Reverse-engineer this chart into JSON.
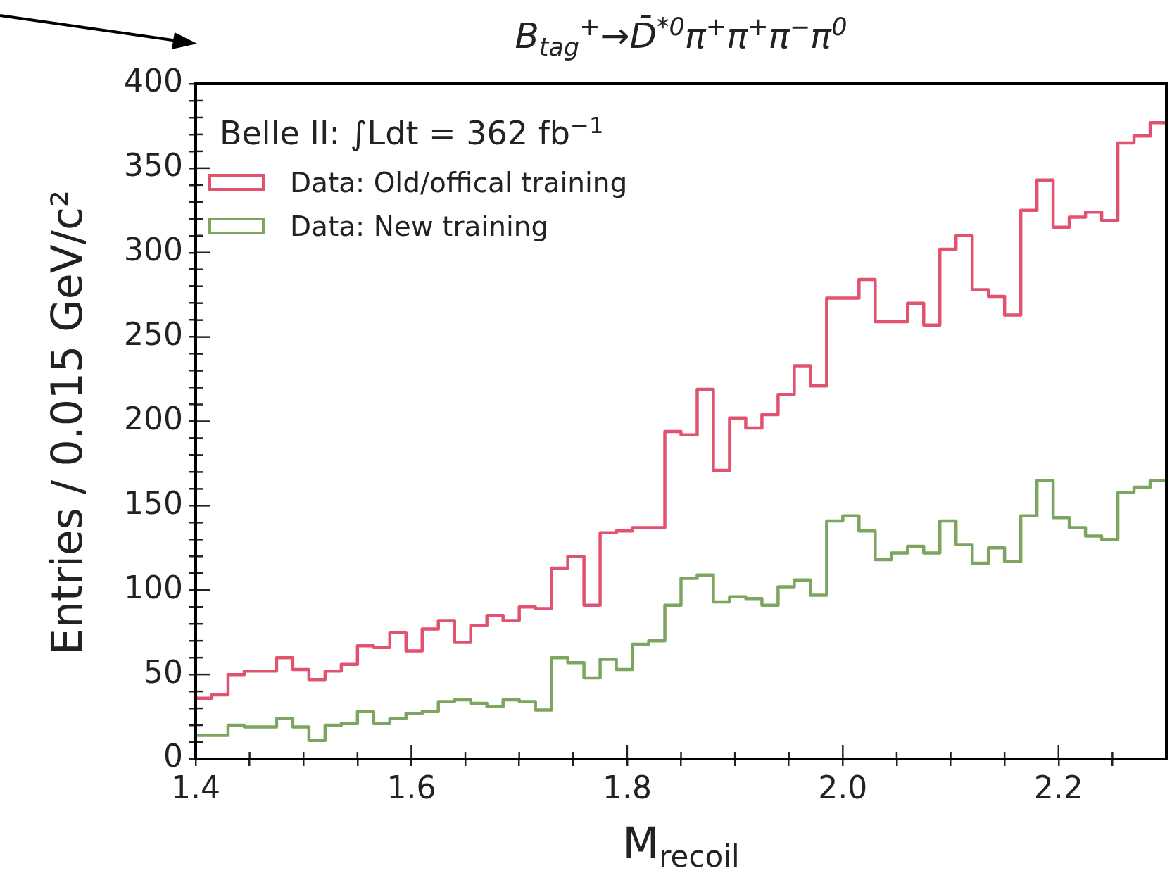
{
  "chart_data": {
    "type": "histogram",
    "title": "B$_{tag}$$^{+}$→D̄$^{*0}$π$^{+}$π$^{+}$π$^{−}$π$^{0}$",
    "xlabel": "M$_{recoil}$",
    "ylabel": "Entries / 0.015 GeV/c²",
    "annotations": [
      "Belle II: ∫Ldt = 362 fb$^{−1}$"
    ],
    "bins": [
      1.4,
      1.415,
      1.43,
      1.445,
      1.46,
      1.475,
      1.49,
      1.505,
      1.52,
      1.535,
      1.55,
      1.565,
      1.58,
      1.595,
      1.61,
      1.625,
      1.64,
      1.655,
      1.67,
      1.685,
      1.7,
      1.715,
      1.73,
      1.745,
      1.76,
      1.775,
      1.79,
      1.805,
      1.82,
      1.835,
      1.85,
      1.865,
      1.88,
      1.895,
      1.91,
      1.925,
      1.94,
      1.955,
      1.97,
      1.985,
      2.0,
      2.015,
      2.03,
      2.045,
      2.06,
      2.075,
      2.09,
      2.105,
      2.12,
      2.135,
      2.15,
      2.165,
      2.18,
      2.195,
      2.21,
      2.225,
      2.24,
      2.255,
      2.27,
      2.285,
      2.3
    ],
    "series": [
      {
        "name": "Data: Old/offical training",
        "color": "#e0526d",
        "values": [
          36,
          38,
          50,
          52,
          52,
          60,
          53,
          47,
          52,
          56,
          67,
          66,
          75,
          64,
          77,
          82,
          69,
          79,
          85,
          82,
          90,
          89,
          113,
          120,
          91,
          134,
          135,
          137,
          137,
          194,
          192,
          219,
          171,
          202,
          196,
          204,
          216,
          233,
          221,
          273,
          273,
          284,
          259,
          259,
          270,
          257,
          302,
          310,
          278,
          274,
          263,
          325,
          343,
          315,
          321,
          324,
          319,
          365,
          369,
          377
        ]
      },
      {
        "name": "Data: New training",
        "color": "#7ca55f",
        "values": [
          14,
          14,
          20,
          19,
          19,
          24,
          19,
          11,
          20,
          21,
          28,
          21,
          24,
          27,
          28,
          34,
          35,
          33,
          31,
          35,
          34,
          29,
          60,
          57,
          48,
          59,
          53,
          68,
          70,
          91,
          107,
          109,
          93,
          96,
          95,
          91,
          102,
          106,
          97,
          141,
          144,
          135,
          118,
          122,
          126,
          122,
          141,
          127,
          116,
          125,
          117,
          144,
          165,
          143,
          137,
          132,
          130,
          158,
          161,
          165
        ]
      }
    ],
    "xlim": [
      1.4,
      2.3
    ],
    "xticks": [
      1.4,
      {
        "value": 1.45,
        "label": null
      },
      {
        "value": 1.5,
        "label": null
      },
      {
        "value": 1.55,
        "label": null
      },
      1.6,
      {
        "value": 1.65,
        "label": null
      },
      {
        "value": 1.7,
        "label": null
      },
      {
        "value": 1.75,
        "label": null
      },
      1.8,
      {
        "value": 1.85,
        "label": null
      },
      {
        "value": 1.9,
        "label": null
      },
      {
        "value": 1.95,
        "label": null
      },
      {
        "value": 2,
        "label": "2.0"
      },
      {
        "value": 2.05,
        "label": null
      },
      {
        "value": 2.1,
        "label": null
      },
      {
        "value": 2.15,
        "label": null
      },
      2.2,
      {
        "value": 2.25,
        "label": null
      }
    ],
    "ylim": [
      0,
      400
    ],
    "yticks": [
      0,
      {
        "value": 10,
        "label": null
      },
      {
        "value": 20,
        "label": null
      },
      {
        "value": 30,
        "label": null
      },
      {
        "value": 40,
        "label": null
      },
      50,
      {
        "value": 60,
        "label": null
      },
      {
        "value": 70,
        "label": null
      },
      {
        "value": 80,
        "label": null
      },
      {
        "value": 90,
        "label": null
      },
      100,
      {
        "value": 110,
        "label": null
      },
      {
        "value": 120,
        "label": null
      },
      {
        "value": 130,
        "label": null
      },
      {
        "value": 140,
        "label": null
      },
      150,
      {
        "value": 160,
        "label": null
      },
      {
        "value": 170,
        "label": null
      },
      {
        "value": 180,
        "label": null
      },
      {
        "value": 190,
        "label": null
      },
      200,
      {
        "value": 210,
        "label": null
      },
      {
        "value": 220,
        "label": null
      },
      {
        "value": 230,
        "label": null
      },
      {
        "value": 240,
        "label": null
      },
      250,
      {
        "value": 260,
        "label": null
      },
      {
        "value": 270,
        "label": null
      },
      {
        "value": 280,
        "label": null
      },
      {
        "value": 290,
        "label": null
      },
      300,
      {
        "value": 310,
        "label": null
      },
      {
        "value": 320,
        "label": null
      },
      {
        "value": 330,
        "label": null
      },
      {
        "value": 340,
        "label": null
      },
      350,
      {
        "value": 360,
        "label": null
      },
      {
        "value": 370,
        "label": null
      },
      {
        "value": 380,
        "label": null
      },
      {
        "value": 390,
        "label": null
      },
      400
    ],
    "grid": false,
    "legend": "top left"
  }
}
